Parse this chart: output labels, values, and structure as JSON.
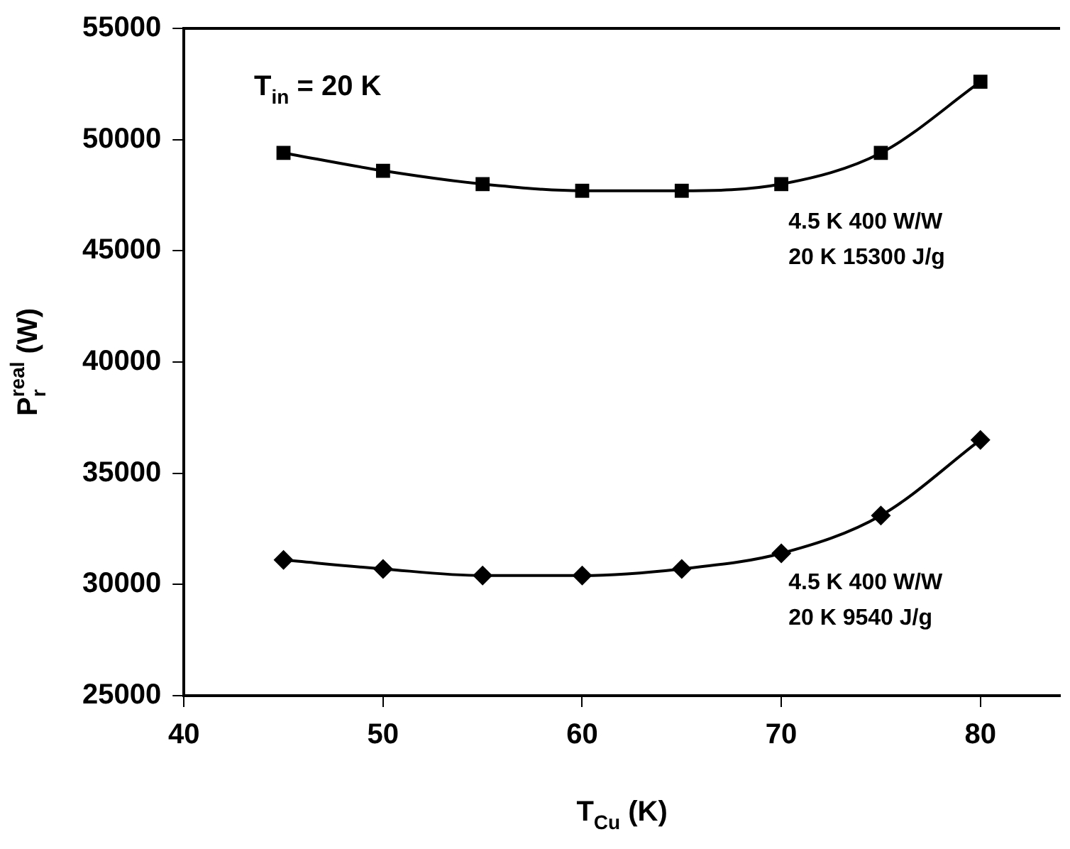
{
  "chart_data": {
    "type": "line",
    "xlabel": "T$_{Cu}$ (K)",
    "ylabel": "P$_{r}$$^{real}$ (W)",
    "xlim": [
      40,
      84
    ],
    "xticks": [
      40,
      50,
      60,
      70,
      80
    ],
    "ylim": [
      25000,
      55000
    ],
    "yticks": [
      25000,
      30000,
      35000,
      40000,
      45000,
      50000,
      55000
    ],
    "grid": false,
    "legend": false,
    "line_style": "solid",
    "series": [
      {
        "x": [
          45,
          50,
          55,
          60,
          65,
          70,
          75,
          80
        ],
        "values": [
          49400,
          48600,
          48000,
          47700,
          47700,
          48000,
          49400,
          52600
        ],
        "color": "#000000",
        "marker": "square"
      },
      {
        "x": [
          45,
          50,
          55,
          60,
          65,
          70,
          75,
          80
        ],
        "values": [
          31100,
          30700,
          30400,
          30400,
          30700,
          31400,
          33100,
          36500
        ],
        "color": "#000000",
        "marker": "diamond"
      }
    ],
    "annotations": [
      {
        "text": "T$_{in}$ = 20 K"
      },
      "4.5 K 400 W/W\n20 K 15300 J/g",
      "4.5 K 400 W/W\n20 K 9540 J/g"
    ]
  }
}
